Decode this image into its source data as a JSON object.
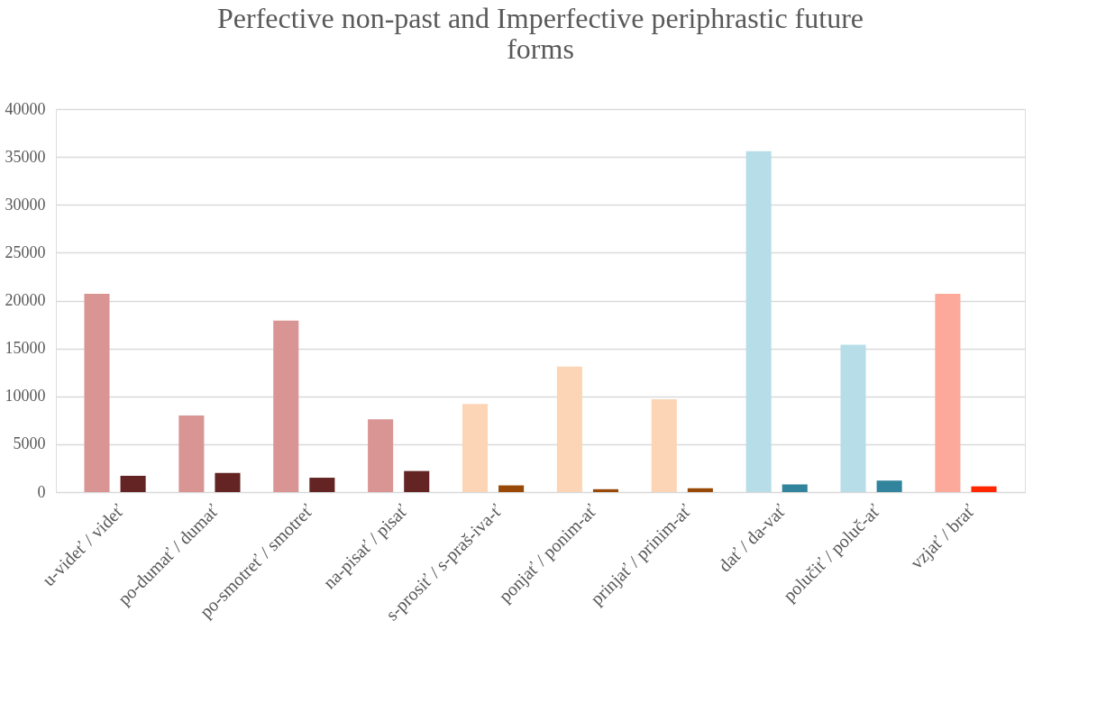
{
  "chart_data": {
    "type": "bar",
    "title": [
      "Perfective non-past and Imperfective periphrastic future",
      "forms"
    ],
    "categories": [
      "u-videť / videť",
      "po-dumať / dumať",
      "po-smotreť / smotreť",
      "na-pisať / pisať",
      "s-prosiť / s-praš-iva-ť",
      "ponjať / ponim-ať",
      "prinjať / prinim-ať",
      "dať / da-vať",
      "polučiť / poluč-ať",
      "vzjať / brať"
    ],
    "series": [
      {
        "values": [
          20700,
          8000,
          17900,
          7600,
          9200,
          13100,
          9700,
          35600,
          15400,
          20700
        ],
        "colors": [
          "#d99594",
          "#d99594",
          "#d99594",
          "#d99594",
          "#fbd5b5",
          "#fbd5b5",
          "#fbd5b5",
          "#b7dde8",
          "#b7dde8",
          "#fca99b"
        ]
      },
      {
        "values": [
          1700,
          2000,
          1500,
          2200,
          700,
          300,
          400,
          800,
          1200,
          600
        ],
        "colors": [
          "#632423",
          "#632423",
          "#632423",
          "#632423",
          "#984807",
          "#984807",
          "#984807",
          "#31849b",
          "#31849b",
          "#ff2600"
        ]
      }
    ],
    "ylim": [
      0,
      40000
    ],
    "yticks": [
      0,
      5000,
      10000,
      15000,
      20000,
      25000,
      30000,
      35000,
      40000
    ],
    "grid": "y"
  }
}
